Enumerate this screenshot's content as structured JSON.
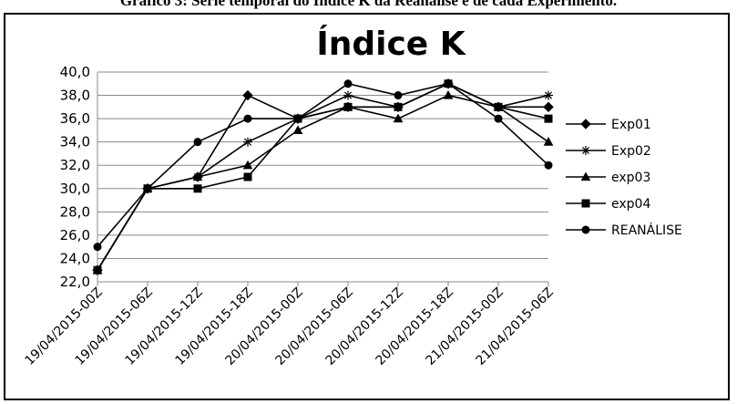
{
  "caption": "Gráfico 3: Série temporal do Índice K da Reanálise e de cada Experimento.",
  "chart_data": {
    "type": "line",
    "title": "Índice K",
    "xlabel": "",
    "ylabel": "",
    "categories": [
      "19/04/2015-00Z",
      "19/04/2015-06Z",
      "19/04/2015-12Z",
      "19/04/2015-18Z",
      "20/04/2015-00Z",
      "20/04/2015-06Z",
      "20/04/2015-12Z",
      "20/04/2015-18Z",
      "21/04/2015-00Z",
      "21/04/2015-06Z"
    ],
    "ylim": [
      22,
      40
    ],
    "yticks": [
      "22,0",
      "24,0",
      "26,0",
      "28,0",
      "30,0",
      "32,0",
      "34,0",
      "36,0",
      "38,0",
      "40,0"
    ],
    "grid": "horizontal",
    "legend": "right",
    "series": [
      {
        "name": "Exp01",
        "marker": "diamond",
        "values": [
          23,
          30,
          31,
          38,
          36,
          37,
          37,
          39,
          37,
          37
        ]
      },
      {
        "name": "Exp02",
        "marker": "star",
        "values": [
          23,
          30,
          31,
          34,
          36,
          38,
          37,
          39,
          37,
          38
        ]
      },
      {
        "name": "exp03",
        "marker": "triangle",
        "values": [
          23,
          30,
          31,
          32,
          35,
          37,
          36,
          38,
          37,
          34
        ]
      },
      {
        "name": "exp04",
        "marker": "square",
        "values": [
          23,
          30,
          30,
          31,
          36,
          37,
          37,
          39,
          37,
          36
        ]
      },
      {
        "name": "REANÁLISE",
        "marker": "circle",
        "values": [
          25,
          30,
          34,
          36,
          36,
          39,
          38,
          39,
          36,
          32
        ]
      }
    ]
  }
}
